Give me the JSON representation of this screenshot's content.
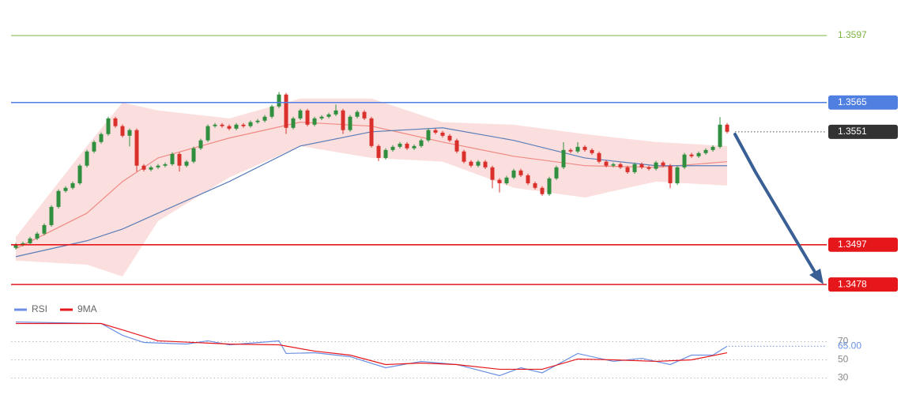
{
  "chart_data": [
    {
      "type": "candlestick",
      "up_color": "#2f8f3f",
      "down_color": "#d9302c",
      "ylim": [
        1.3472,
        1.3614
      ],
      "open": [
        1.34955,
        1.3497,
        1.34977,
        1.35,
        1.35023,
        1.35064,
        1.35151,
        1.35227,
        1.35242,
        1.35264,
        1.35348,
        1.35416,
        1.35461,
        1.35499,
        1.35574,
        1.35537,
        1.35491,
        1.35518,
        1.35348,
        1.35329,
        1.3534,
        1.35348,
        1.35355,
        1.35404,
        1.35348,
        1.35367,
        1.35431,
        1.35469,
        1.35537,
        1.35544,
        1.35537,
        1.35525,
        1.35544,
        1.35537,
        1.35556,
        1.35563,
        1.35582,
        1.35631,
        1.35688,
        1.35529,
        1.35574,
        1.35612,
        1.35544,
        1.35574,
        1.35582,
        1.35593,
        1.35612,
        1.35518,
        1.35582,
        1.35605,
        1.35574,
        1.35442,
        1.35385,
        1.35423,
        1.35438,
        1.35453,
        1.35431,
        1.35442,
        1.35469,
        1.35518,
        1.35506,
        1.35491,
        1.35469,
        1.35416,
        1.35367,
        1.35348,
        1.35367,
        1.3534,
        1.3528,
        1.35264,
        1.35291,
        1.35325,
        1.35302,
        1.35264,
        1.35242,
        1.35212,
        1.35287,
        1.3534,
        1.35423,
        1.35416,
        1.35438,
        1.35423,
        1.35408,
        1.35367,
        1.35348,
        1.35355,
        1.3534,
        1.35317,
        1.35355,
        1.3534,
        1.35333,
        1.35363,
        1.35348,
        1.35264,
        1.3534,
        1.35401,
        1.35393,
        1.35408,
        1.35423,
        1.35438,
        1.35544
      ],
      "high": [
        1.34978,
        1.34985,
        1.35008,
        1.35031,
        1.35072,
        1.35159,
        1.35235,
        1.3525,
        1.35272,
        1.35356,
        1.35424,
        1.35469,
        1.35507,
        1.35582,
        1.35582,
        1.35545,
        1.35526,
        1.35526,
        1.35356,
        1.35348,
        1.35356,
        1.35363,
        1.35412,
        1.35412,
        1.35375,
        1.35439,
        1.35477,
        1.35545,
        1.35552,
        1.35552,
        1.35545,
        1.35552,
        1.35552,
        1.35564,
        1.35571,
        1.3559,
        1.35639,
        1.357,
        1.35696,
        1.35582,
        1.3562,
        1.3562,
        1.35582,
        1.3559,
        1.35601,
        1.3564,
        1.3562,
        1.3559,
        1.35613,
        1.35613,
        1.35582,
        1.3545,
        1.35431,
        1.35446,
        1.35461,
        1.35461,
        1.3545,
        1.35477,
        1.35526,
        1.35526,
        1.35514,
        1.35499,
        1.35477,
        1.35424,
        1.35375,
        1.35375,
        1.35375,
        1.35348,
        1.35288,
        1.35299,
        1.35333,
        1.35333,
        1.3531,
        1.35272,
        1.3525,
        1.35295,
        1.35348,
        1.3546,
        1.35431,
        1.3546,
        1.35446,
        1.35431,
        1.35416,
        1.35375,
        1.35363,
        1.35363,
        1.35348,
        1.35363,
        1.35363,
        1.35348,
        1.35371,
        1.35371,
        1.35356,
        1.35348,
        1.35409,
        1.35409,
        1.35416,
        1.35431,
        1.35446,
        1.3558,
        1.35552
      ],
      "low": [
        1.34947,
        1.34962,
        1.34969,
        1.34992,
        1.35015,
        1.35056,
        1.35143,
        1.35219,
        1.35234,
        1.35256,
        1.3534,
        1.35408,
        1.35453,
        1.35491,
        1.35529,
        1.35483,
        1.3544,
        1.3532,
        1.35321,
        1.35321,
        1.35332,
        1.3534,
        1.35347,
        1.3532,
        1.3534,
        1.35359,
        1.35423,
        1.35461,
        1.35529,
        1.35529,
        1.35517,
        1.35517,
        1.35529,
        1.35529,
        1.35548,
        1.35555,
        1.35574,
        1.35623,
        1.355,
        1.35521,
        1.35566,
        1.35536,
        1.35536,
        1.35566,
        1.35574,
        1.35585,
        1.355,
        1.3551,
        1.35574,
        1.35566,
        1.35434,
        1.3537,
        1.35377,
        1.35415,
        1.3543,
        1.35423,
        1.35423,
        1.35434,
        1.35461,
        1.35498,
        1.35483,
        1.35461,
        1.35408,
        1.35359,
        1.3534,
        1.3534,
        1.35332,
        1.3524,
        1.3522,
        1.35256,
        1.35283,
        1.35294,
        1.35256,
        1.35234,
        1.35204,
        1.35204,
        1.35279,
        1.35332,
        1.35408,
        1.35408,
        1.35415,
        1.354,
        1.35359,
        1.3534,
        1.3534,
        1.35332,
        1.35309,
        1.35309,
        1.35332,
        1.35325,
        1.35325,
        1.3534,
        1.3524,
        1.35256,
        1.35332,
        1.35385,
        1.35385,
        1.354,
        1.35415,
        1.3543,
        1.35502
      ],
      "close": [
        1.3497,
        1.34977,
        1.35,
        1.35023,
        1.35064,
        1.35151,
        1.35227,
        1.35242,
        1.35264,
        1.35348,
        1.35416,
        1.35461,
        1.35499,
        1.35574,
        1.35537,
        1.35491,
        1.35518,
        1.35348,
        1.35329,
        1.3534,
        1.35348,
        1.35355,
        1.35404,
        1.35348,
        1.35367,
        1.35431,
        1.35469,
        1.35537,
        1.35544,
        1.35537,
        1.35525,
        1.35544,
        1.35537,
        1.35556,
        1.35563,
        1.35582,
        1.35631,
        1.35688,
        1.35529,
        1.35574,
        1.35612,
        1.35544,
        1.35574,
        1.35582,
        1.35593,
        1.35612,
        1.35518,
        1.35582,
        1.35605,
        1.35574,
        1.35442,
        1.35385,
        1.35423,
        1.35438,
        1.35453,
        1.35431,
        1.35442,
        1.35469,
        1.35518,
        1.35506,
        1.35491,
        1.35469,
        1.35416,
        1.35367,
        1.35348,
        1.35367,
        1.3534,
        1.3528,
        1.35264,
        1.35291,
        1.35325,
        1.35302,
        1.35264,
        1.35242,
        1.35212,
        1.35287,
        1.3534,
        1.35423,
        1.35416,
        1.35438,
        1.35423,
        1.35408,
        1.35367,
        1.35348,
        1.35355,
        1.3534,
        1.35317,
        1.35355,
        1.3534,
        1.35333,
        1.35363,
        1.35348,
        1.35264,
        1.3534,
        1.35401,
        1.35393,
        1.35408,
        1.35423,
        1.35438,
        1.35544,
        1.3551
      ],
      "bands": {
        "color": "#f7c5c3",
        "x": [
          0,
          10,
          15,
          20,
          30,
          40,
          50,
          60,
          70,
          80,
          90,
          100
        ],
        "upper": [
          1.35007,
          1.35442,
          1.3565,
          1.35612,
          1.35574,
          1.35669,
          1.35669,
          1.35556,
          1.35544,
          1.35499,
          1.35461,
          1.35442
        ],
        "lower": [
          1.34894,
          1.34875,
          1.34818,
          1.35083,
          1.35291,
          1.35442,
          1.35385,
          1.35367,
          1.35242,
          1.35196,
          1.35272,
          1.35253
        ]
      },
      "lines": [
        {
          "color": "#f08a84",
          "x": [
            0,
            10,
            15,
            20,
            30,
            40,
            50,
            60,
            70,
            80,
            90,
            100
          ],
          "values": [
            1.34951,
            1.35121,
            1.35272,
            1.35385,
            1.3548,
            1.35556,
            1.35537,
            1.35461,
            1.35393,
            1.35348,
            1.3534,
            1.35367
          ]
        },
        {
          "color": "#5a7db8",
          "x": [
            0,
            10,
            15,
            20,
            30,
            40,
            50,
            60,
            70,
            80,
            90,
            100
          ],
          "values": [
            1.34913,
            1.34989,
            1.35045,
            1.35121,
            1.35272,
            1.35442,
            1.3551,
            1.35529,
            1.35469,
            1.35385,
            1.35348,
            1.35348
          ]
        }
      ],
      "levels": [
        {
          "value": 1.3597,
          "color": "#7cb342",
          "label_box": false
        },
        {
          "value": 1.3565,
          "color": "#4f7fe0",
          "label_box": true
        },
        {
          "value": 1.3497,
          "color": "#e5171b",
          "label_box": true
        },
        {
          "value": 1.3478,
          "color": "#e5171b",
          "label_box": true
        }
      ],
      "last_price": {
        "value": 1.3551,
        "color": "#333333"
      }
    },
    {
      "type": "line",
      "ylim": [
        20,
        100
      ],
      "yticks": [
        30,
        50,
        70
      ],
      "series": [
        {
          "name": "RSI",
          "color": "#6b8fe3",
          "x": [
            0,
            12,
            15,
            18,
            24,
            27,
            30,
            37,
            38,
            42,
            47,
            52,
            57,
            62,
            68,
            71,
            74,
            79,
            84,
            88,
            92,
            95,
            98,
            100
          ],
          "values": [
            91.7,
            90.0,
            77.0,
            69.1,
            67.4,
            70.9,
            66.5,
            70.9,
            57.0,
            57.8,
            53.5,
            41.3,
            48.3,
            44.8,
            32.6,
            41.3,
            35.7,
            57.0,
            48.3,
            51.7,
            44.8,
            55.2,
            55.2,
            65
          ]
        },
        {
          "name": "9MA",
          "color": "#e5171b",
          "x": [
            0,
            12,
            15,
            20,
            30,
            37,
            42,
            47,
            52,
            57,
            62,
            68,
            74,
            79,
            84,
            90,
            95,
            100
          ],
          "values": [
            90.0,
            90.0,
            83.0,
            70.9,
            67.4,
            66.5,
            59.6,
            55.2,
            44.8,
            46.5,
            44.8,
            39.6,
            39.6,
            50.9,
            50.0,
            48.3,
            50.0,
            57.8
          ]
        }
      ],
      "last_value": {
        "value": 65,
        "label": "65.00"
      }
    }
  ]
}
